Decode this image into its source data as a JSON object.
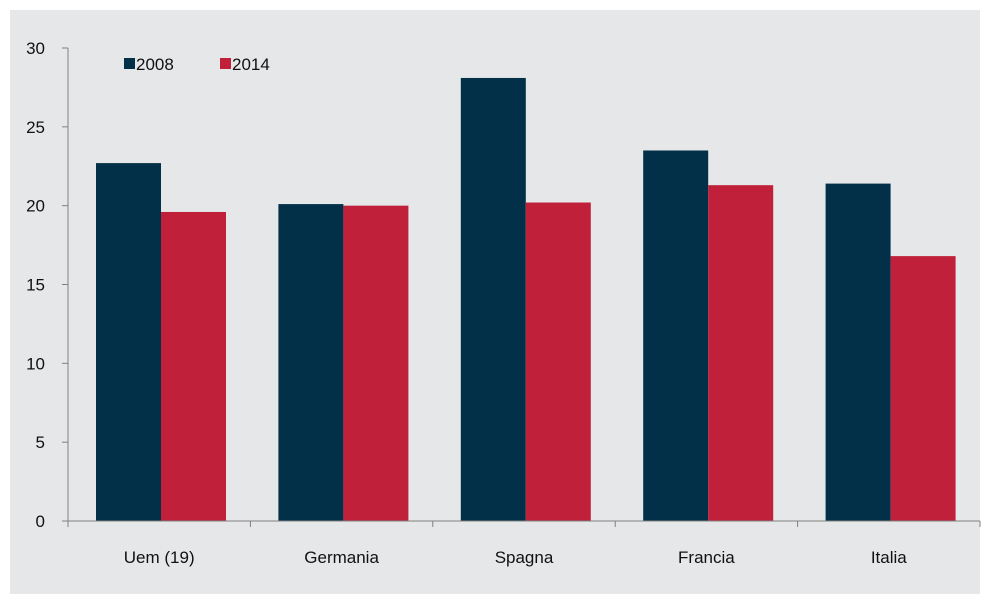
{
  "chart_data": {
    "type": "bar",
    "title": "",
    "xlabel": "",
    "ylabel": "",
    "categories": [
      "Uem (19)",
      "Germania",
      "Spagna",
      "Francia",
      "Italia"
    ],
    "series": [
      {
        "name": "2008",
        "color": "#023049",
        "values": [
          22.7,
          20.1,
          28.1,
          23.5,
          21.4
        ]
      },
      {
        "name": "2014",
        "color": "#c0203a",
        "values": [
          19.6,
          20.0,
          20.2,
          21.3,
          16.8
        ]
      }
    ],
    "ylim": [
      0,
      30
    ],
    "yticks": [
      0,
      5,
      10,
      15,
      20,
      25,
      30
    ],
    "ytick_labels": [
      "0",
      "5",
      "10",
      "15",
      "20",
      "25",
      "30"
    ],
    "grid": false,
    "legend_position": "top-left",
    "background_color": "#e6e7e8"
  }
}
